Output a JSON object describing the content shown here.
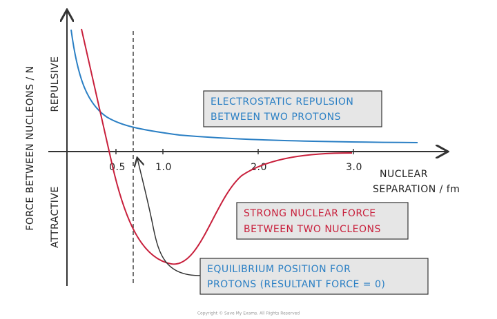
{
  "axes": {
    "y_label": "FORCE BETWEEN NUCLEONS / N",
    "repulsive": "REPULSIVE",
    "attractive": "ATTRACTIVE",
    "x_label": [
      "NUCLEAR",
      "SEPARATION / fm"
    ],
    "x_ticks": [
      "0.5",
      "1.0",
      "2.0",
      "3.0"
    ]
  },
  "labels": [
    {
      "lines": [
        "ELECTROSTATIC REPULSION",
        "BETWEEN TWO PROTONS"
      ]
    },
    {
      "lines": [
        "STRONG NUCLEAR FORCE",
        "BETWEEN TWO NUCLEONS"
      ]
    },
    {
      "lines": [
        "EQUILIBRIUM POSITION FOR",
        "PROTONS (RESULTANT FORCE = 0)"
      ]
    }
  ],
  "footer": "Copyright © Save My Exams. All Rights Reserved"
}
